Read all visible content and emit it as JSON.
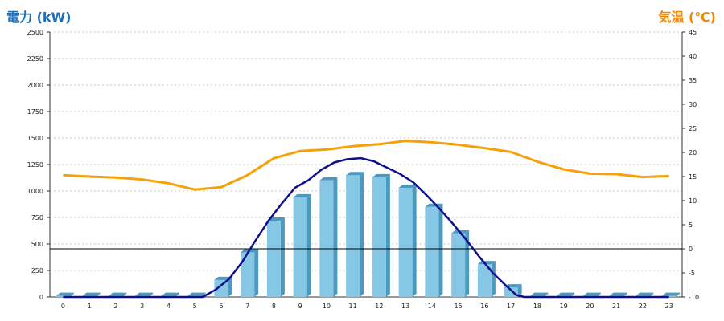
{
  "labels": {
    "left_axis_title": "電力 (kW)",
    "right_axis_title": "気温 (℃)"
  },
  "colors": {
    "bar_front": "#86c7e6",
    "bar_top": "#b9e1f3",
    "bar_side": "#4d98bf",
    "power_line": "#0f0f8c",
    "temp_line": "#f5a20a",
    "grid": "#c8c8c8",
    "zero_line": "#000000",
    "left_title": "#1f6fb6",
    "right_title": "#f08a00"
  },
  "chart_data": {
    "type": "bar+line",
    "categories": [
      "0",
      "1",
      "2",
      "3",
      "4",
      "5",
      "6",
      "7",
      "8",
      "9",
      "10",
      "11",
      "12",
      "13",
      "14",
      "15",
      "16",
      "17",
      "18",
      "19",
      "20",
      "21",
      "22",
      "23"
    ],
    "y_left": {
      "label": "電力 (kW)",
      "range": [
        0,
        2500
      ],
      "ticks": [
        0,
        250,
        500,
        750,
        1000,
        1250,
        1500,
        1750,
        2000,
        2250,
        2500
      ]
    },
    "y_right": {
      "label": "気温 (℃)",
      "range": [
        -10,
        45
      ],
      "ticks": [
        -10,
        -5,
        0,
        5,
        10,
        15,
        20,
        25,
        30,
        35,
        40,
        45
      ]
    },
    "bars": {
      "values": [
        10,
        10,
        10,
        10,
        10,
        10,
        160,
        420,
        720,
        940,
        1100,
        1150,
        1130,
        1030,
        850,
        600,
        310,
        90,
        10,
        10,
        10,
        10,
        10,
        10
      ]
    },
    "power_line": {
      "axis": "left",
      "points": [
        [
          0,
          0
        ],
        [
          1,
          0
        ],
        [
          2,
          0
        ],
        [
          3,
          0
        ],
        [
          4,
          0
        ],
        [
          5,
          0
        ],
        [
          5.3,
          0
        ],
        [
          5.8,
          70
        ],
        [
          6.3,
          170
        ],
        [
          6.8,
          330
        ],
        [
          7.3,
          530
        ],
        [
          7.8,
          720
        ],
        [
          8.3,
          880
        ],
        [
          8.8,
          1030
        ],
        [
          9.3,
          1100
        ],
        [
          9.8,
          1200
        ],
        [
          10.3,
          1270
        ],
        [
          10.8,
          1300
        ],
        [
          11.3,
          1310
        ],
        [
          11.8,
          1280
        ],
        [
          12.3,
          1220
        ],
        [
          12.8,
          1160
        ],
        [
          13.3,
          1080
        ],
        [
          13.8,
          960
        ],
        [
          14.3,
          830
        ],
        [
          14.8,
          690
        ],
        [
          15.3,
          540
        ],
        [
          15.8,
          380
        ],
        [
          16.3,
          230
        ],
        [
          16.8,
          110
        ],
        [
          17.2,
          20
        ],
        [
          17.5,
          0
        ],
        [
          18,
          0
        ],
        [
          19,
          0
        ],
        [
          20,
          0
        ],
        [
          21,
          0
        ],
        [
          22,
          0
        ],
        [
          23,
          0
        ]
      ]
    },
    "temperature_line": {
      "axis": "right",
      "points": [
        [
          0,
          15.3
        ],
        [
          1,
          15
        ],
        [
          2,
          14.8
        ],
        [
          3,
          14.4
        ],
        [
          4,
          13.6
        ],
        [
          5,
          12.3
        ],
        [
          6,
          12.8
        ],
        [
          7,
          15.3
        ],
        [
          8,
          18.8
        ],
        [
          9,
          20.3
        ],
        [
          10,
          20.6
        ],
        [
          11,
          21.3
        ],
        [
          12,
          21.7
        ],
        [
          13,
          22.4
        ],
        [
          14,
          22.1
        ],
        [
          15,
          21.6
        ],
        [
          16,
          20.9
        ],
        [
          17,
          20.1
        ],
        [
          18,
          18.1
        ],
        [
          19,
          16.5
        ],
        [
          20,
          15.6
        ],
        [
          21,
          15.5
        ],
        [
          22,
          14.9
        ],
        [
          23,
          15.1
        ]
      ]
    },
    "grid": true
  }
}
